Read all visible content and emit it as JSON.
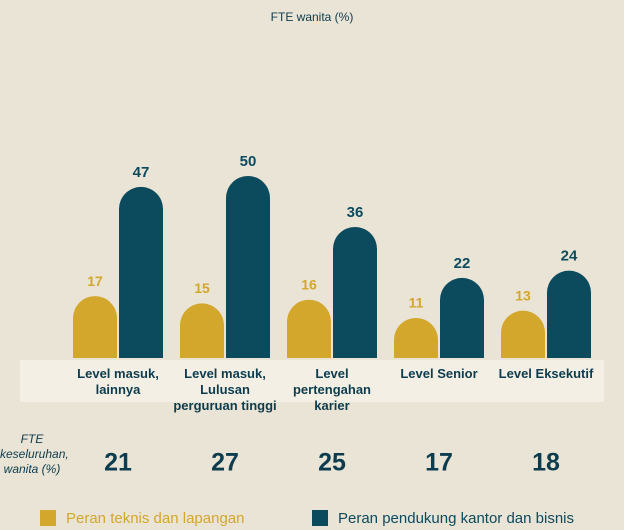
{
  "chart_data": {
    "type": "bar",
    "title": "FTE  wanita (%)",
    "categories": [
      "Level masuk, lainnya",
      "Level masuk, Lulusan perguruan tinggi",
      "Level pertengahan karier",
      "Level Senior",
      "Level Eksekutif"
    ],
    "series": [
      {
        "name": "Peran teknis dan lapangan",
        "color": "#d3a62c",
        "values": [
          17,
          15,
          16,
          11,
          13
        ]
      },
      {
        "name": "Peran pendukung kantor dan bisnis",
        "color": "#0c4a5e",
        "values": [
          47,
          50,
          36,
          22,
          24
        ]
      }
    ],
    "overall_label": "FTE keseluruhan, wanita (%)",
    "overall_values": [
      21,
      27,
      25,
      17,
      18
    ]
  }
}
